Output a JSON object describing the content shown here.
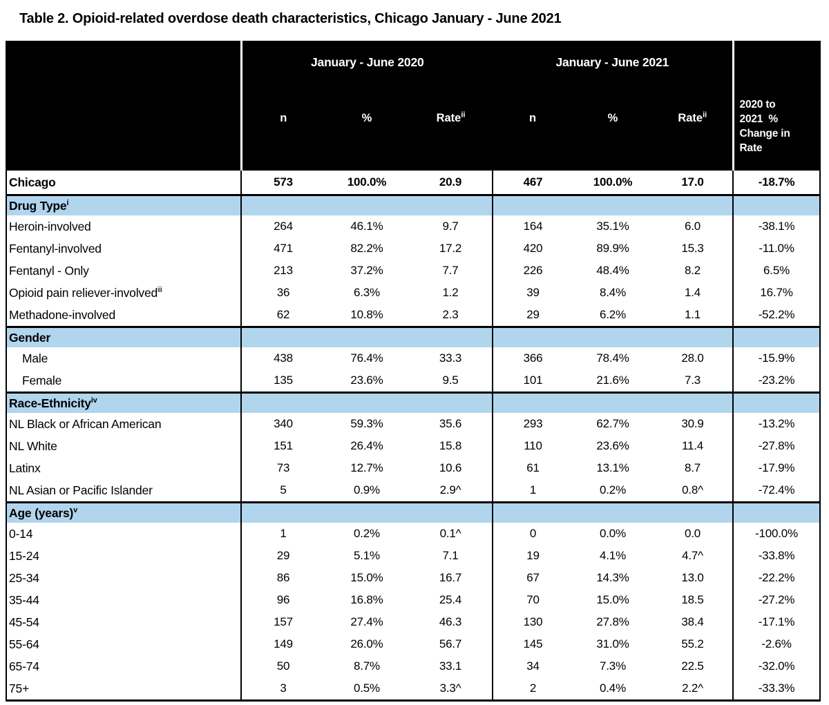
{
  "title": "Table 2. Opioid-related overdose death characteristics, Chicago January - June 2021",
  "colors": {
    "header_bg": "#000000",
    "header_text": "#ffffff",
    "section_band": "#b2d5ee",
    "border": "#000000"
  },
  "table": {
    "col_groups": [
      {
        "label": "January - June 2020"
      },
      {
        "label": "January - June 2021"
      }
    ],
    "col_headers": {
      "n": "n",
      "pct": "%",
      "rate": "Rate",
      "rate_sup": "ii",
      "change_label": "2020 to\n2021  %\nChange in\nRate"
    },
    "chicago_row": {
      "label": "Chicago",
      "sup": "",
      "values": [
        "573",
        "100.0%",
        "20.9",
        "467",
        "100.0%",
        "17.0",
        "-18.7%"
      ]
    },
    "sections": [
      {
        "header": "Drug Type",
        "sup": "i",
        "rows": [
          {
            "label": "Heroin-involved",
            "sup": "",
            "indent": false,
            "values": [
              "264",
              "46.1%",
              "9.7",
              "164",
              "35.1%",
              "6.0",
              "-38.1%"
            ]
          },
          {
            "label": "Fentanyl-involved",
            "sup": "",
            "indent": false,
            "values": [
              "471",
              "82.2%",
              "17.2",
              "420",
              "89.9%",
              "15.3",
              "-11.0%"
            ]
          },
          {
            "label": "Fentanyl - Only",
            "sup": "",
            "indent": false,
            "values": [
              "213",
              "37.2%",
              "7.7",
              "226",
              "48.4%",
              "8.2",
              "6.5%"
            ]
          },
          {
            "label": "Opioid pain reliever-involved",
            "sup": "iii",
            "indent": false,
            "values": [
              "36",
              "6.3%",
              "1.2",
              "39",
              "8.4%",
              "1.4",
              "16.7%"
            ]
          },
          {
            "label": "Methadone-involved",
            "sup": "",
            "indent": false,
            "values": [
              "62",
              "10.8%",
              "2.3",
              "29",
              "6.2%",
              "1.1",
              "-52.2%"
            ]
          }
        ]
      },
      {
        "header": "Gender",
        "sup": "",
        "rows": [
          {
            "label": "Male",
            "sup": "",
            "indent": true,
            "values": [
              "438",
              "76.4%",
              "33.3",
              "366",
              "78.4%",
              "28.0",
              "-15.9%"
            ]
          },
          {
            "label": "Female",
            "sup": "",
            "indent": true,
            "values": [
              "135",
              "23.6%",
              "9.5",
              "101",
              "21.6%",
              "7.3",
              "-23.2%"
            ]
          }
        ]
      },
      {
        "header": "Race-Ethnicity",
        "sup": "iv",
        "rows": [
          {
            "label": "NL Black or African American",
            "sup": "",
            "indent": false,
            "values": [
              "340",
              "59.3%",
              "35.6",
              "293",
              "62.7%",
              "30.9",
              "-13.2%"
            ]
          },
          {
            "label": "NL White",
            "sup": "",
            "indent": false,
            "values": [
              "151",
              "26.4%",
              "15.8",
              "110",
              "23.6%",
              "11.4",
              "-27.8%"
            ]
          },
          {
            "label": "Latinx",
            "sup": "",
            "indent": false,
            "values": [
              "73",
              "12.7%",
              "10.6",
              "61",
              "13.1%",
              "8.7",
              "-17.9%"
            ]
          },
          {
            "label": "NL Asian or Pacific Islander",
            "sup": "",
            "indent": false,
            "values": [
              "5",
              "0.9%",
              "2.9^",
              "1",
              "0.2%",
              "0.8^",
              "-72.4%"
            ]
          }
        ]
      },
      {
        "header": "Age (years)",
        "sup": "v",
        "rows": [
          {
            "label": "0-14",
            "sup": "",
            "indent": false,
            "values": [
              "1",
              "0.2%",
              "0.1^",
              "0",
              "0.0%",
              "0.0",
              "-100.0%"
            ]
          },
          {
            "label": "15-24",
            "sup": "",
            "indent": false,
            "values": [
              "29",
              "5.1%",
              "7.1",
              "19",
              "4.1%",
              "4.7^",
              "-33.8%"
            ]
          },
          {
            "label": "25-34",
            "sup": "",
            "indent": false,
            "values": [
              "86",
              "15.0%",
              "16.7",
              "67",
              "14.3%",
              "13.0",
              "-22.2%"
            ]
          },
          {
            "label": "35-44",
            "sup": "",
            "indent": false,
            "values": [
              "96",
              "16.8%",
              "25.4",
              "70",
              "15.0%",
              "18.5",
              "-27.2%"
            ]
          },
          {
            "label": "45-54",
            "sup": "",
            "indent": false,
            "values": [
              "157",
              "27.4%",
              "46.3",
              "130",
              "27.8%",
              "38.4",
              "-17.1%"
            ]
          },
          {
            "label": "55-64",
            "sup": "",
            "indent": false,
            "values": [
              "149",
              "26.0%",
              "56.7",
              "145",
              "31.0%",
              "55.2",
              "-2.6%"
            ]
          },
          {
            "label": "65-74",
            "sup": "",
            "indent": false,
            "values": [
              "50",
              "8.7%",
              "33.1",
              "34",
              "7.3%",
              "22.5",
              "-32.0%"
            ]
          },
          {
            "label": "75+",
            "sup": "",
            "indent": false,
            "values": [
              "3",
              "0.5%",
              "3.3^",
              "2",
              "0.4%",
              "2.2^",
              "-33.3%"
            ]
          }
        ]
      }
    ]
  }
}
